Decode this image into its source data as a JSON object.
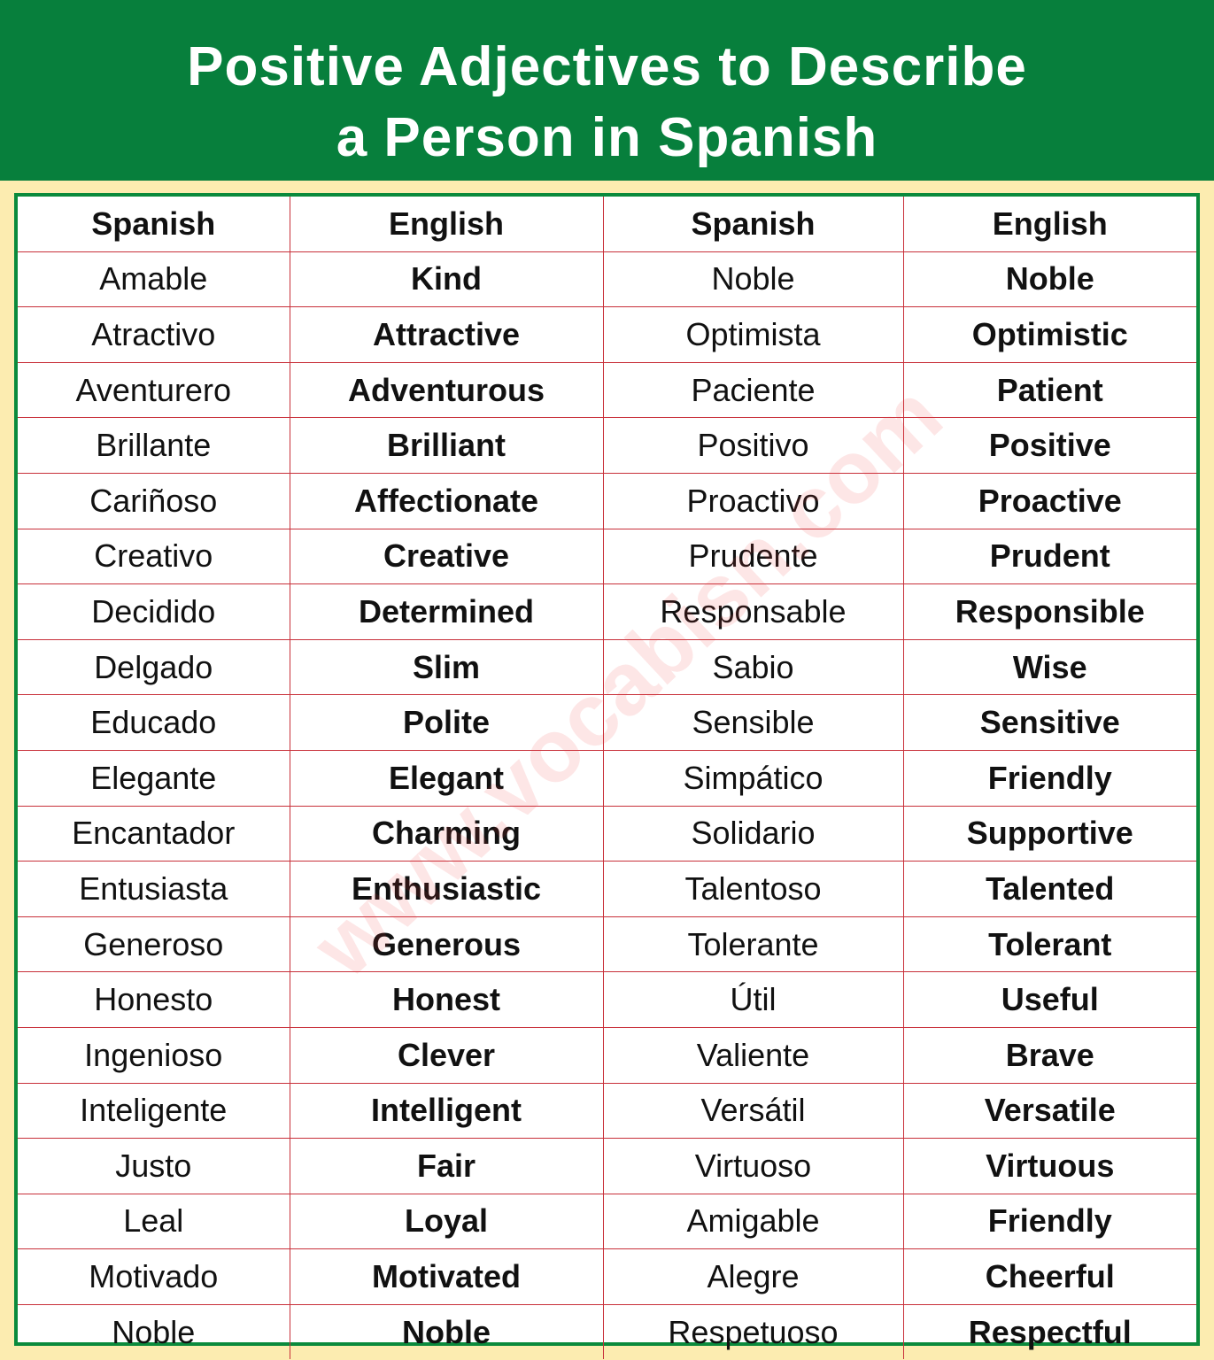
{
  "title": {
    "line1": "Positive Adjectives to Describe",
    "line2": "a Person in Spanish"
  },
  "watermark": "www.vocabisn.com",
  "colors": {
    "header_bg": "#077f3c",
    "background": "#fcecb0",
    "table_border": "#0a8a3c",
    "row_lines": "#c8303a"
  },
  "columns": [
    "Spanish",
    "English",
    "Spanish",
    "English"
  ],
  "rows": [
    [
      "Amable",
      "Kind",
      "Noble",
      "Noble"
    ],
    [
      "Atractivo",
      "Attractive",
      "Optimista",
      "Optimistic"
    ],
    [
      "Aventurero",
      "Adventurous",
      "Paciente",
      "Patient"
    ],
    [
      "Brillante",
      "Brilliant",
      "Positivo",
      "Positive"
    ],
    [
      "Cariñoso",
      "Affectionate",
      "Proactivo",
      "Proactive"
    ],
    [
      "Creativo",
      "Creative",
      "Prudente",
      "Prudent"
    ],
    [
      "Decidido",
      "Determined",
      "Responsable",
      "Responsible"
    ],
    [
      "Delgado",
      "Slim",
      "Sabio",
      "Wise"
    ],
    [
      "Educado",
      "Polite",
      "Sensible",
      "Sensitive"
    ],
    [
      "Elegante",
      "Elegant",
      "Simpático",
      "Friendly"
    ],
    [
      "Encantador",
      "Charming",
      "Solidario",
      "Supportive"
    ],
    [
      "Entusiasta",
      "Enthusiastic",
      "Talentoso",
      "Talented"
    ],
    [
      "Generoso",
      "Generous",
      "Tolerante",
      "Tolerant"
    ],
    [
      "Honesto",
      "Honest",
      "Útil",
      "Useful"
    ],
    [
      "Ingenioso",
      "Clever",
      "Valiente",
      "Brave"
    ],
    [
      "Inteligente",
      "Intelligent",
      "Versátil",
      "Versatile"
    ],
    [
      "Justo",
      "Fair",
      "Virtuoso",
      "Virtuous"
    ],
    [
      "Leal",
      "Loyal",
      "Amigable",
      "Friendly"
    ],
    [
      "Motivado",
      "Motivated",
      "Alegre",
      "Cheerful"
    ],
    [
      "Noble",
      "Noble",
      "Respetuoso",
      "Respectful"
    ]
  ]
}
